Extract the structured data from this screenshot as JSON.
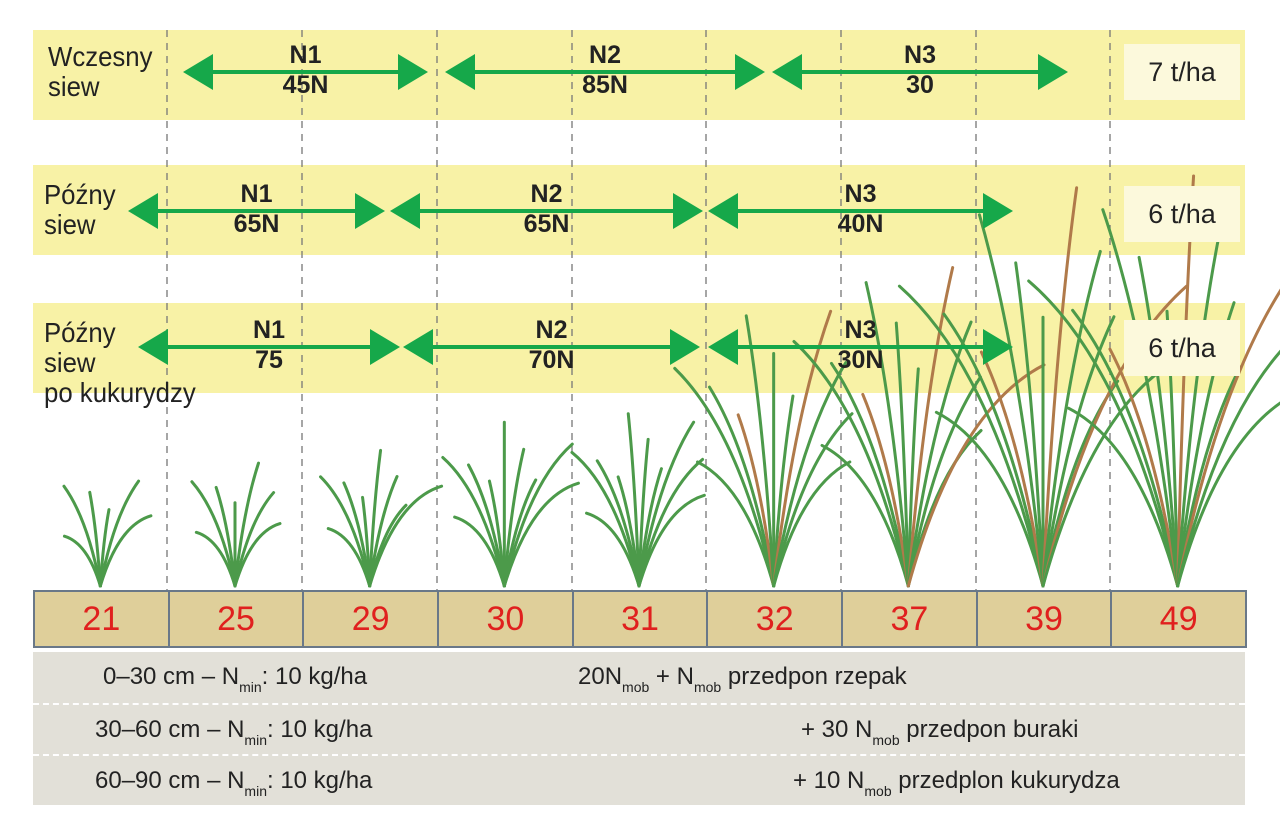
{
  "colors": {
    "band": "#f8f2a6",
    "arrow": "#16a84a",
    "stage_text": "#e0201e",
    "stage_bg": "#dfcf9a",
    "soil_bg": "#e2e0d8",
    "plant": "#4c9a4a"
  },
  "rows": [
    {
      "label_line1": "Wczesny",
      "label_line2": "siew",
      "label_line3": "",
      "yield": "7 t/ha",
      "segments": [
        {
          "name": "N1",
          "dose": "45N"
        },
        {
          "name": "N2",
          "dose": "85N"
        },
        {
          "name": "N3",
          "dose": "30"
        }
      ]
    },
    {
      "label_line1": "Późny",
      "label_line2": "siew",
      "label_line3": "",
      "yield": "6 t/ha",
      "segments": [
        {
          "name": "N1",
          "dose": "65N"
        },
        {
          "name": "N2",
          "dose": "65N"
        },
        {
          "name": "N3",
          "dose": "40N"
        }
      ]
    },
    {
      "label_line1": "Późny",
      "label_line2": "siew",
      "label_line3": "po kukurydzy",
      "yield": "6 t/ha",
      "segments": [
        {
          "name": "N1",
          "dose": "75"
        },
        {
          "name": "N2",
          "dose": "70N"
        },
        {
          "name": "N3",
          "dose": "30N"
        }
      ]
    }
  ],
  "stages": [
    "21",
    "25",
    "29",
    "30",
    "31",
    "32",
    "37",
    "39",
    "49"
  ],
  "soil": [
    {
      "depth": "0–30 cm  – N",
      "sub": "min",
      "value": ": 10 kg/ha",
      "right_pre": "20N",
      "right_sub1": "mob",
      "right_mid": " + N",
      "right_sub2": "mob",
      "right_post": " przedpon rzepak"
    },
    {
      "depth": "30–60 cm – N",
      "sub": "min",
      "value": ": 10 kg/ha",
      "right_pre": "+ 30 N",
      "right_sub1": "mob",
      "right_post": " przedpon buraki"
    },
    {
      "depth": "60–90 cm – N",
      "sub": "min",
      "value": ": 10 kg/ha",
      "right_pre": "+ 10 N",
      "right_sub1": "mob",
      "right_post": " przedplon kukurydza"
    }
  ]
}
